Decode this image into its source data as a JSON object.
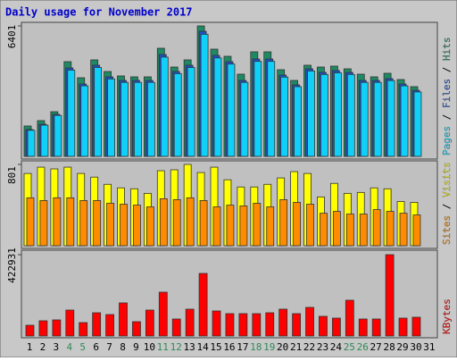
{
  "chart_data": [
    {
      "type": "bar",
      "title": "Daily usage for November 2017",
      "categories": [
        "1",
        "2",
        "3",
        "4",
        "5",
        "6",
        "7",
        "8",
        "9",
        "10",
        "11",
        "12",
        "13",
        "14",
        "15",
        "16",
        "17",
        "18",
        "19",
        "20",
        "21",
        "22",
        "23",
        "24",
        "25",
        "26",
        "27",
        "28",
        "29",
        "30",
        "31"
      ],
      "weekend": [
        false,
        false,
        false,
        true,
        true,
        false,
        false,
        false,
        false,
        false,
        true,
        true,
        false,
        false,
        false,
        false,
        false,
        true,
        true,
        false,
        false,
        false,
        false,
        false,
        true,
        true,
        false,
        false,
        false,
        false,
        false
      ],
      "weekday_color": "#000000",
      "weekend_color": "#2e8b57",
      "legend_separator": " / ",
      "series": [
        {
          "name": "Hits",
          "color": "#1e8a63",
          "values": [
            1491,
            1754,
            2192,
            4647,
            3858,
            4735,
            4165,
            3946,
            3902,
            3902,
            5305,
            4384,
            4735,
            6401,
            5261,
            4910,
            4033,
            5129,
            5129,
            4252,
            3726,
            4472,
            4384,
            4428,
            4296,
            4033,
            3902,
            4077,
            3770,
            3420,
            null
          ]
        },
        {
          "name": "Files",
          "color": "#2050c8",
          "values": [
            1315,
            1578,
            2060,
            4340,
            3551,
            4472,
            3902,
            3726,
            3726,
            3726,
            4998,
            4165,
            4472,
            6138,
            4954,
            4647,
            3726,
            4779,
            4779,
            3989,
            3507,
            4296,
            4121,
            4209,
            4121,
            3726,
            3726,
            3814,
            3551,
            3244,
            null
          ]
        },
        {
          "name": "Pages",
          "color": "#10d0f8",
          "values": [
            1280,
            1530,
            2010,
            4230,
            3460,
            4360,
            3800,
            3630,
            3630,
            3630,
            4870,
            4060,
            4360,
            5990,
            4830,
            4530,
            3630,
            4660,
            4660,
            3890,
            3420,
            4190,
            4020,
            4100,
            4020,
            3630,
            3630,
            3720,
            3460,
            3160,
            null
          ]
        }
      ],
      "ylim": [
        0,
        6401
      ],
      "yticks": [
        6401
      ]
    },
    {
      "type": "bar",
      "series": [
        {
          "name": "Visits",
          "color": "#ffff00",
          "values": [
            712,
            774,
            757,
            774,
            712,
            676,
            605,
            570,
            561,
            516,
            739,
            748,
            801,
            721,
            774,
            650,
            579,
            579,
            605,
            668,
            730,
            712,
            481,
            614,
            516,
            525,
            570,
            561,
            436,
            427,
            null
          ]
        },
        {
          "name": "Sites",
          "color": "#ff8c00",
          "values": [
            472,
            445,
            472,
            472,
            445,
            445,
            418,
            409,
            400,
            383,
            463,
            454,
            472,
            445,
            383,
            400,
            392,
            418,
            383,
            454,
            427,
            409,
            320,
            338,
            312,
            312,
            356,
            338,
            320,
            303,
            null
          ]
        }
      ],
      "ylim": [
        0,
        801
      ],
      "yticks": [
        801
      ]
    },
    {
      "type": "bar",
      "series": [
        {
          "name": "KBytes",
          "color": "#ff0000",
          "values": [
            55776,
            79016,
            83664,
            134792,
            69720,
            120848,
            111552,
            171976,
            74368,
            134792,
            227752,
            88312,
            139440,
            325360,
            130144,
            116200,
            116200,
            116200,
            120848,
            139440,
            116200,
            148736,
            102256,
            92960,
            185920,
            88312,
            88312,
            422931,
            92960,
            97608,
            null
          ]
        }
      ],
      "ylim": [
        0,
        422931
      ],
      "yticks": [
        422931
      ]
    }
  ]
}
